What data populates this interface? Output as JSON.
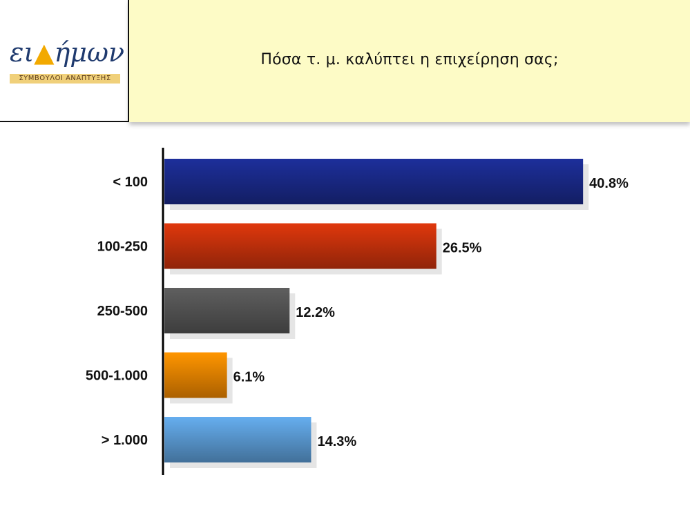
{
  "logo": {
    "name_part1": "ει",
    "name_part2": "ήμων",
    "tagline": "ΣΥΜΒΟΥΛΟΙ ΑΝΑΠΤΥΞΗΣ"
  },
  "header": {
    "title": "Πόσα τ. μ. καλύπτει η επιχείρηση σας;"
  },
  "chart_data": {
    "type": "bar",
    "orientation": "horizontal",
    "title": "Πόσα τ. μ. καλύπτει η επιχείρηση σας;",
    "categories": [
      "< 100",
      "100-250",
      "250-500",
      "500-1.000",
      "> 1.000"
    ],
    "values": [
      40.8,
      26.5,
      12.2,
      6.1,
      14.3
    ],
    "value_labels": [
      "40.8%",
      "26.5%",
      "12.2%",
      "6.1%",
      "14.3%"
    ],
    "unit": "%",
    "colors": [
      "#1a2a8a",
      "#c8320c",
      "#555555",
      "#ee8600",
      "#5b9bd5"
    ],
    "xlim": [
      0,
      42
    ],
    "grid": false,
    "legend": "none"
  }
}
